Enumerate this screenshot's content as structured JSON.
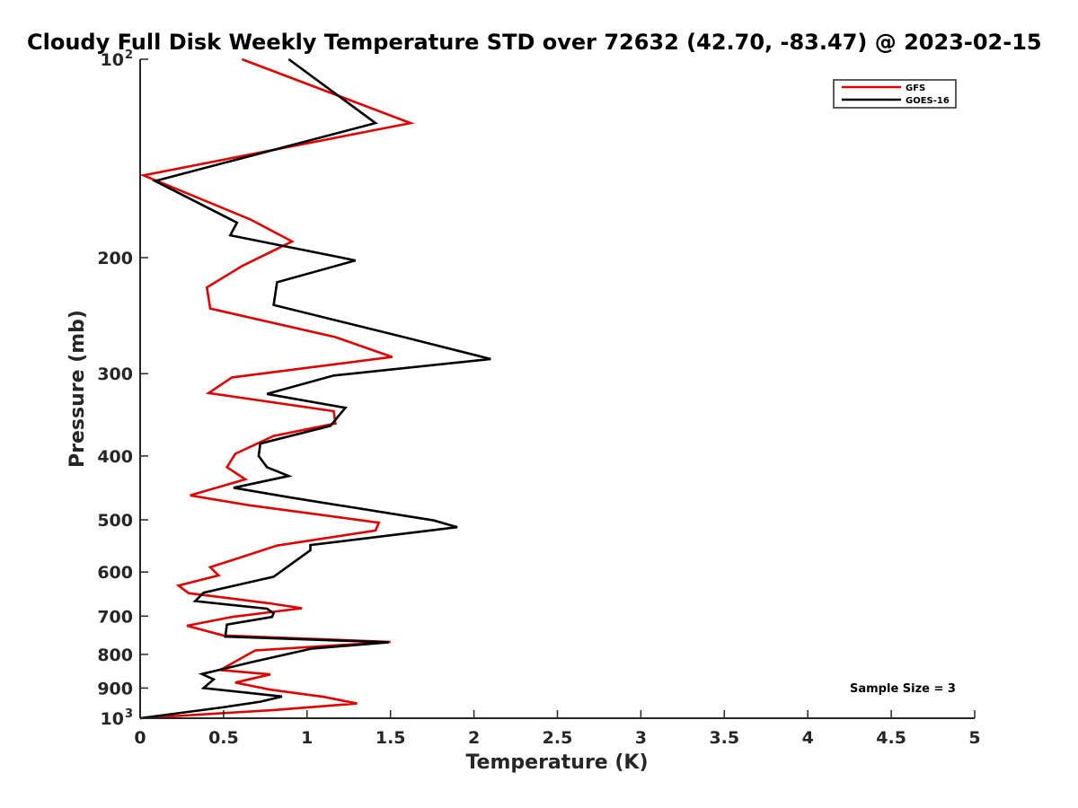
{
  "chart_data": {
    "type": "line",
    "title": "Cloudy Full Disk Weekly Temperature STD over 72632 (42.70, -83.47) @ 2023-02-15",
    "xlabel": "Temperature (K)",
    "ylabel": "Pressure (mb)",
    "xlim": [
      0,
      5
    ],
    "ylim": [
      100,
      1000
    ],
    "yscale": "log",
    "y_reversed": true,
    "x_ticks": [
      "0",
      "0.5",
      "1",
      "1.5",
      "2",
      "2.5",
      "3",
      "3.5",
      "4",
      "4.5",
      "5"
    ],
    "y_ticks": [
      {
        "value": 100,
        "label": "10",
        "exp": "2"
      },
      {
        "value": 200,
        "label": "200"
      },
      {
        "value": 300,
        "label": "300"
      },
      {
        "value": 400,
        "label": "400"
      },
      {
        "value": 500,
        "label": "500"
      },
      {
        "value": 600,
        "label": "600"
      },
      {
        "value": 700,
        "label": "700"
      },
      {
        "value": 800,
        "label": "800"
      },
      {
        "value": 900,
        "label": "900"
      },
      {
        "value": 1000,
        "label": "10",
        "exp": "3"
      }
    ],
    "legend_position": "top-right",
    "grid": false,
    "annotation": "Sample Size = 3",
    "series": [
      {
        "name": "GFS",
        "color": "#e00000",
        "points": [
          [
            0.61,
            100
          ],
          [
            1.62,
            125
          ],
          [
            0.02,
            150
          ],
          [
            0.66,
            175
          ],
          [
            0.91,
            189
          ],
          [
            0.61,
            206
          ],
          [
            0.4,
            222
          ],
          [
            0.42,
            239
          ],
          [
            1.17,
            264
          ],
          [
            1.51,
            283
          ],
          [
            0.55,
            304
          ],
          [
            0.41,
            321
          ],
          [
            1.16,
            342
          ],
          [
            1.17,
            357
          ],
          [
            0.8,
            373
          ],
          [
            0.57,
            397
          ],
          [
            0.52,
            416
          ],
          [
            0.63,
            434
          ],
          [
            0.3,
            459
          ],
          [
            0.65,
            475
          ],
          [
            1.43,
            505
          ],
          [
            1.41,
            519
          ],
          [
            0.82,
            547
          ],
          [
            0.42,
            590
          ],
          [
            0.47,
            607
          ],
          [
            0.23,
            629
          ],
          [
            0.29,
            646
          ],
          [
            0.77,
            669
          ],
          [
            0.97,
            681
          ],
          [
            0.55,
            702
          ],
          [
            0.28,
            724
          ],
          [
            0.5,
            749
          ],
          [
            1.5,
            766
          ],
          [
            0.69,
            789
          ],
          [
            0.62,
            807
          ],
          [
            0.48,
            845
          ],
          [
            0.78,
            858
          ],
          [
            0.57,
            883
          ],
          [
            0.78,
            905
          ],
          [
            1.1,
            928
          ],
          [
            1.3,
            950
          ],
          [
            0.8,
            972
          ],
          [
            0.0,
            1000
          ]
        ]
      },
      {
        "name": "GOES-16",
        "color": "#000000",
        "points": [
          [
            0.89,
            100
          ],
          [
            1.41,
            125
          ],
          [
            0.09,
            153
          ],
          [
            0.58,
            177
          ],
          [
            0.54,
            185
          ],
          [
            1.29,
            202
          ],
          [
            0.82,
            218
          ],
          [
            0.8,
            236
          ],
          [
            1.58,
            264
          ],
          [
            2.1,
            285
          ],
          [
            1.16,
            302
          ],
          [
            0.76,
            322
          ],
          [
            1.23,
            338
          ],
          [
            1.14,
            360
          ],
          [
            0.72,
            383
          ],
          [
            0.71,
            400
          ],
          [
            0.76,
            416
          ],
          [
            0.89,
            429
          ],
          [
            0.56,
            447
          ],
          [
            0.89,
            462
          ],
          [
            1.76,
            501
          ],
          [
            1.9,
            513
          ],
          [
            1.02,
            546
          ],
          [
            1.02,
            556
          ],
          [
            0.8,
            610
          ],
          [
            0.38,
            645
          ],
          [
            0.33,
            664
          ],
          [
            0.76,
            682
          ],
          [
            0.8,
            693
          ],
          [
            0.79,
            702
          ],
          [
            0.52,
            721
          ],
          [
            0.51,
            752
          ],
          [
            1.49,
            767
          ],
          [
            1.03,
            784
          ],
          [
            0.66,
            823
          ],
          [
            0.37,
            857
          ],
          [
            0.44,
            873
          ],
          [
            0.38,
            900
          ],
          [
            0.85,
            927
          ],
          [
            0.72,
            944
          ],
          [
            0.49,
            963
          ],
          [
            0.0,
            1000
          ]
        ]
      }
    ]
  }
}
